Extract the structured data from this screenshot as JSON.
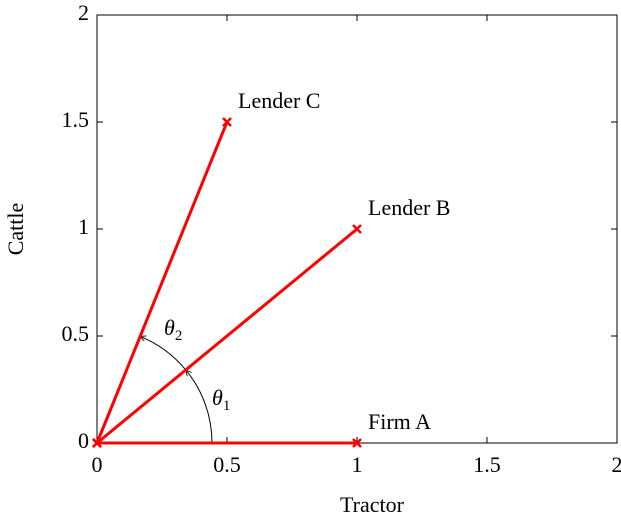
{
  "chart_data": {
    "type": "line",
    "x_label": "Tractor",
    "y_label": "Cattle",
    "series": [
      {
        "name": "Firm A",
        "color": "#ff0000",
        "x": [
          0,
          1
        ],
        "values": [
          0,
          0
        ]
      },
      {
        "name": "Lender B",
        "color": "#ff0000",
        "x": [
          0,
          1
        ],
        "values": [
          0,
          1
        ]
      },
      {
        "name": "Lender C",
        "color": "#ff0000",
        "x": [
          0,
          0.5
        ],
        "values": [
          0,
          1.5
        ]
      }
    ],
    "annotations": [
      {
        "text": "θ",
        "sub": "1"
      },
      {
        "text": "θ",
        "sub": "2"
      }
    ],
    "xlim": [
      0,
      2
    ],
    "ylim": [
      0,
      2
    ],
    "xticks": [
      0,
      0.5,
      1,
      1.5,
      2
    ],
    "yticks": [
      0,
      0.5,
      1,
      1.5,
      2
    ],
    "grid": false
  }
}
